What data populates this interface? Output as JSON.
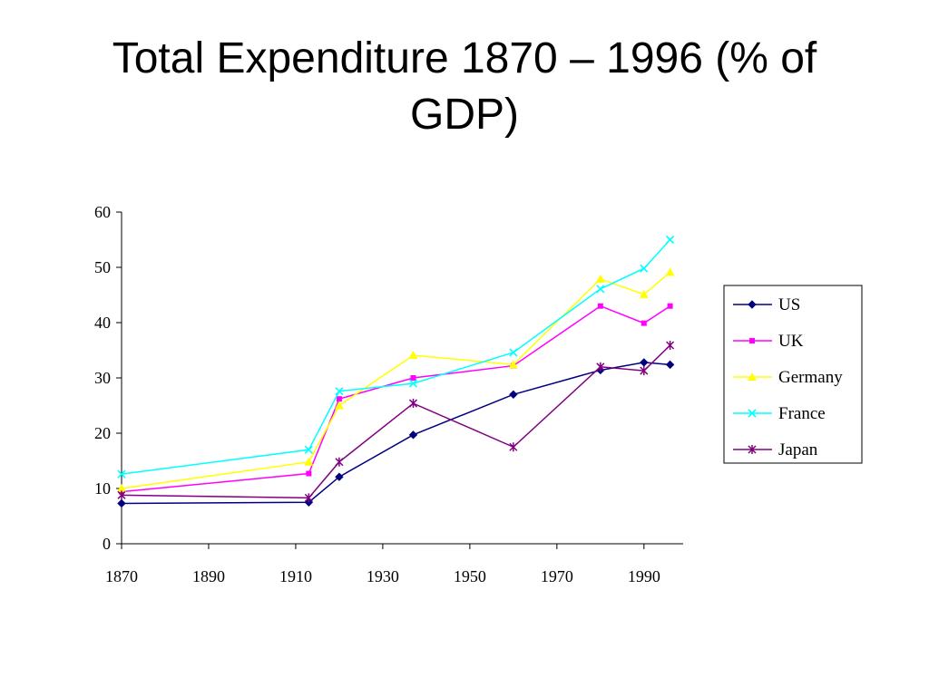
{
  "title": "Total Expenditure 1870 – 1996 (% of GDP)",
  "chart_data": {
    "type": "line",
    "title": "Total Expenditure 1870 – 1996 (% of GDP)",
    "xlabel": "",
    "ylabel": "",
    "xlim": [
      1870,
      1999
    ],
    "ylim": [
      0,
      60
    ],
    "x_ticks": [
      1870,
      1890,
      1910,
      1930,
      1950,
      1970,
      1990
    ],
    "y_ticks": [
      0,
      10,
      20,
      30,
      40,
      50,
      60
    ],
    "grid": false,
    "legend_position": "right",
    "series": [
      {
        "name": "US",
        "color": "#000080",
        "marker": "diamond",
        "x": [
          1870,
          1913,
          1920,
          1937,
          1960,
          1980,
          1990,
          1996
        ],
        "values": [
          7.3,
          7.5,
          12.1,
          19.7,
          27.0,
          31.4,
          32.8,
          32.4
        ]
      },
      {
        "name": "UK",
        "color": "#ff00ff",
        "marker": "square",
        "x": [
          1870,
          1913,
          1920,
          1937,
          1960,
          1980,
          1990,
          1996
        ],
        "values": [
          9.4,
          12.7,
          26.2,
          30.0,
          32.2,
          43.0,
          39.9,
          43.0
        ]
      },
      {
        "name": "Germany",
        "color": "#ffff00",
        "marker": "triangle",
        "x": [
          1870,
          1913,
          1920,
          1937,
          1960,
          1980,
          1990,
          1996
        ],
        "values": [
          10.0,
          14.8,
          25.0,
          34.1,
          32.4,
          47.9,
          45.1,
          49.1
        ]
      },
      {
        "name": "France",
        "color": "#00ffff",
        "marker": "x",
        "x": [
          1870,
          1913,
          1920,
          1937,
          1960,
          1980,
          1990,
          1996
        ],
        "values": [
          12.6,
          17.0,
          27.6,
          29.0,
          34.6,
          46.1,
          49.8,
          55.0
        ]
      },
      {
        "name": "Japan",
        "color": "#800080",
        "marker": "star",
        "x": [
          1870,
          1913,
          1920,
          1937,
          1960,
          1980,
          1990,
          1996
        ],
        "values": [
          8.8,
          8.3,
          14.8,
          25.4,
          17.5,
          32.0,
          31.3,
          35.9
        ]
      }
    ]
  }
}
